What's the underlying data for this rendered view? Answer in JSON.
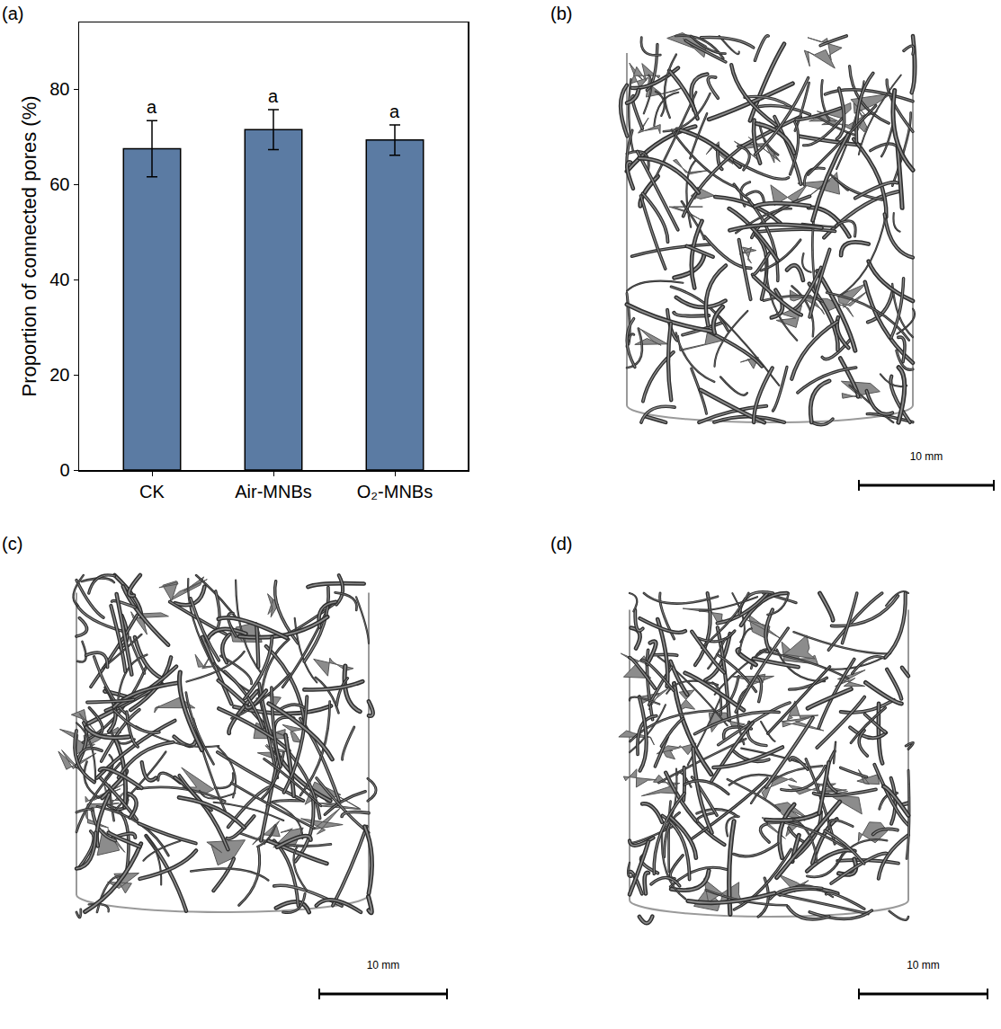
{
  "chart_data": {
    "type": "bar",
    "panel_label": "(a)",
    "y_label": "Proportion of connected pores (%)",
    "categories": [
      "CK",
      "Air-MNBs",
      "O₂-MNBs"
    ],
    "values": [
      67.5,
      71.5,
      69.3
    ],
    "errors": [
      5.9,
      4.2,
      3.2
    ],
    "letters": [
      "a",
      "a",
      "a"
    ],
    "color": "#5b7ba3",
    "ylim": [
      0,
      94
    ],
    "yticks": [
      0,
      20,
      40,
      60,
      80
    ],
    "grid": false
  },
  "images": [
    {
      "label": "(b)",
      "scale_bar": "10 mm"
    },
    {
      "label": "(c)",
      "scale_bar": "10 mm"
    },
    {
      "label": "(d)",
      "scale_bar": "10 mm"
    }
  ]
}
